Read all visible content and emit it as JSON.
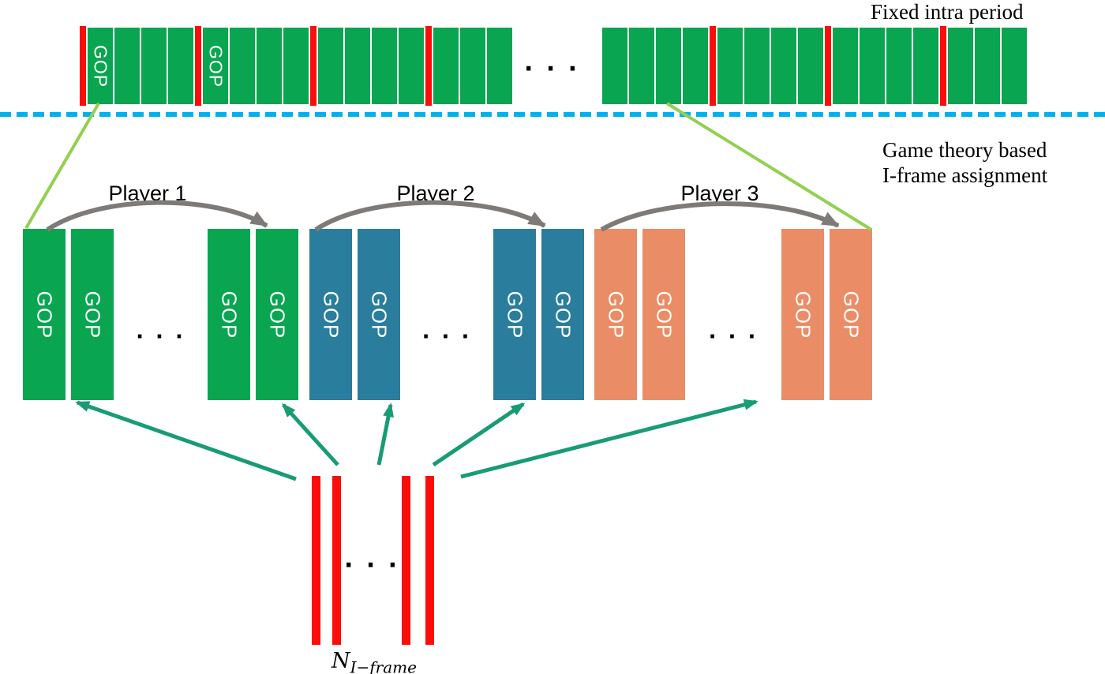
{
  "colors": {
    "green": "#0aa551",
    "teal": "#2a7d9c",
    "orange": "#ea8d66",
    "red": "#fb0e0a",
    "lightgreen": "#92d050",
    "arrowteal": "#189c74",
    "gray": "#7e7a77",
    "dashblue": "#00b0f0",
    "text": "#000000",
    "gop_text": "#ffffff"
  },
  "labels": {
    "fixed_intra_period": "Fixed intra period",
    "assignment_line1": "Game theory based",
    "assignment_line2": "I-frame assignment",
    "gop": "GOP",
    "ellipsis": "· · ·",
    "n_iframe_base": "N",
    "n_iframe_sub": "I−frame"
  },
  "players": [
    {
      "name": "Player 1",
      "color": "green"
    },
    {
      "name": "Player 2",
      "color": "teal"
    },
    {
      "name": "Player 3",
      "color": "orange"
    }
  ],
  "top_row": {
    "left_segments": [
      "red",
      "gop",
      "blk",
      "blk",
      "blk",
      "red",
      "gop",
      "blk",
      "blk",
      "blk",
      "red",
      "blk",
      "blk",
      "blk",
      "blk",
      "red",
      "blk",
      "blk",
      "blk"
    ],
    "right_segments": [
      "blk",
      "blk",
      "blk",
      "blk",
      "red",
      "blk",
      "blk",
      "blk",
      "blk",
      "red",
      "blk",
      "blk",
      "blk",
      "blk",
      "red",
      "blk",
      "blk",
      "blk"
    ]
  },
  "bottom": {
    "iframe_bar_count": 4
  }
}
